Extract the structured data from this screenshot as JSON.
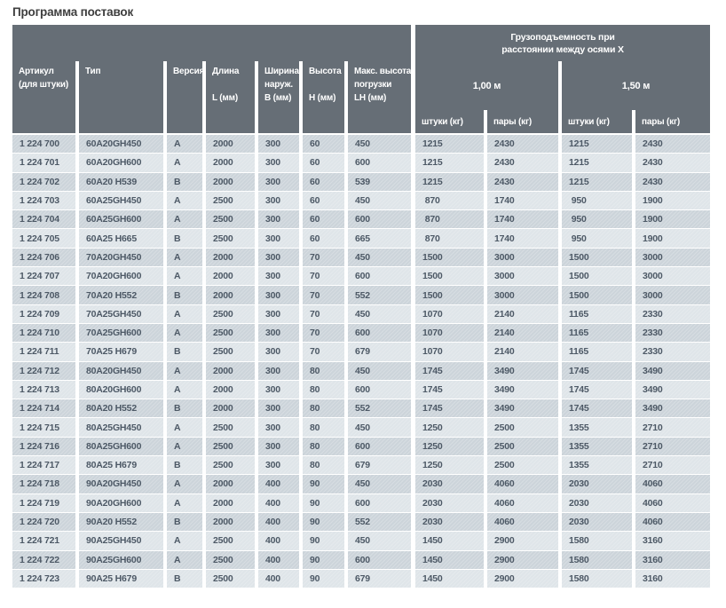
{
  "page_title": "Программа поставок",
  "colors": {
    "header_bg": "#666e76",
    "row_dark": "#ccd4da",
    "row_light": "#dfe5e9",
    "cell_text": "#4d5966",
    "title_text": "#3e3e3e"
  },
  "table": {
    "left_columns": [
      {
        "l1": "Артикул",
        "l2": "(для штуки)",
        "unit": ""
      },
      {
        "l1": "Тип",
        "l2": "",
        "unit": ""
      },
      {
        "l1": "Версия",
        "l2": "",
        "unit": ""
      },
      {
        "l1": "Длина",
        "l2": "",
        "unit": "L (мм)"
      },
      {
        "l1": "Ширина",
        "l2": "наруж.",
        "unit": "B (мм)"
      },
      {
        "l1": "Высота",
        "l2": "",
        "unit": "H (мм)"
      },
      {
        "l1": "Макс. высота",
        "l2": "погрузки",
        "unit": "LH (мм)"
      }
    ],
    "capacity_header": {
      "line1": "Грузоподъемность при",
      "line2": "расстоянии между осями  X"
    },
    "groups": [
      {
        "label": "1,00 м",
        "sub": [
          "штуки (кг)",
          "пары (кг)"
        ]
      },
      {
        "label": "1,50 м",
        "sub": [
          "штуки (кг)",
          "пары (кг)"
        ]
      }
    ],
    "rows": [
      [
        "1 224 700",
        "60A20GH450",
        "A",
        "2000",
        "300",
        "60",
        "450",
        "1215",
        "2430",
        "1215",
        "2430"
      ],
      [
        "1 224 701",
        "60A20GH600",
        "A",
        "2000",
        "300",
        "60",
        "600",
        "1215",
        "2430",
        "1215",
        "2430"
      ],
      [
        "1 224 702",
        "60A20 H539",
        "B",
        "2000",
        "300",
        "60",
        "539",
        "1215",
        "2430",
        "1215",
        "2430"
      ],
      [
        "1 224 703",
        "60A25GH450",
        "A",
        "2500",
        "300",
        "60",
        "450",
        "870",
        "1740",
        "950",
        "1900"
      ],
      [
        "1 224 704",
        "60A25GH600",
        "A",
        "2500",
        "300",
        "60",
        "600",
        "870",
        "1740",
        "950",
        "1900"
      ],
      [
        "1 224 705",
        "60A25 H665",
        "B",
        "2500",
        "300",
        "60",
        "665",
        "870",
        "1740",
        "950",
        "1900"
      ],
      [
        "1 224 706",
        "70A20GH450",
        "A",
        "2000",
        "300",
        "70",
        "450",
        "1500",
        "3000",
        "1500",
        "3000"
      ],
      [
        "1 224 707",
        "70A20GH600",
        "A",
        "2000",
        "300",
        "70",
        "600",
        "1500",
        "3000",
        "1500",
        "3000"
      ],
      [
        "1 224 708",
        "70A20 H552",
        "B",
        "2000",
        "300",
        "70",
        "552",
        "1500",
        "3000",
        "1500",
        "3000"
      ],
      [
        "1 224 709",
        "70A25GH450",
        "A",
        "2500",
        "300",
        "70",
        "450",
        "1070",
        "2140",
        "1165",
        "2330"
      ],
      [
        "1 224 710",
        "70A25GH600",
        "A",
        "2500",
        "300",
        "70",
        "600",
        "1070",
        "2140",
        "1165",
        "2330"
      ],
      [
        "1 224 711",
        "70A25 H679",
        "B",
        "2500",
        "300",
        "70",
        "679",
        "1070",
        "2140",
        "1165",
        "2330"
      ],
      [
        "1 224 712",
        "80A20GH450",
        "A",
        "2000",
        "300",
        "80",
        "450",
        "1745",
        "3490",
        "1745",
        "3490"
      ],
      [
        "1 224 713",
        "80A20GH600",
        "A",
        "2000",
        "300",
        "80",
        "600",
        "1745",
        "3490",
        "1745",
        "3490"
      ],
      [
        "1 224 714",
        "80A20 H552",
        "B",
        "2000",
        "300",
        "80",
        "552",
        "1745",
        "3490",
        "1745",
        "3490"
      ],
      [
        "1 224 715",
        "80A25GH450",
        "A",
        "2500",
        "300",
        "80",
        "450",
        "1250",
        "2500",
        "1355",
        "2710"
      ],
      [
        "1 224 716",
        "80A25GH600",
        "A",
        "2500",
        "300",
        "80",
        "600",
        "1250",
        "2500",
        "1355",
        "2710"
      ],
      [
        "1 224 717",
        "80A25 H679",
        "B",
        "2500",
        "300",
        "80",
        "679",
        "1250",
        "2500",
        "1355",
        "2710"
      ],
      [
        "1 224 718",
        "90A20GH450",
        "A",
        "2000",
        "400",
        "90",
        "450",
        "2030",
        "4060",
        "2030",
        "4060"
      ],
      [
        "1 224 719",
        "90A20GH600",
        "A",
        "2000",
        "400",
        "90",
        "600",
        "2030",
        "4060",
        "2030",
        "4060"
      ],
      [
        "1 224 720",
        "90A20 H552",
        "B",
        "2000",
        "400",
        "90",
        "552",
        "2030",
        "4060",
        "2030",
        "4060"
      ],
      [
        "1 224 721",
        "90A25GH450",
        "A",
        "2500",
        "400",
        "90",
        "450",
        "1450",
        "2900",
        "1580",
        "3160"
      ],
      [
        "1 224 722",
        "90A25GH600",
        "A",
        "2500",
        "400",
        "90",
        "600",
        "1450",
        "2900",
        "1580",
        "3160"
      ],
      [
        "1 224 723",
        "90A25 H679",
        "B",
        "2500",
        "400",
        "90",
        "679",
        "1450",
        "2900",
        "1580",
        "3160"
      ]
    ]
  }
}
